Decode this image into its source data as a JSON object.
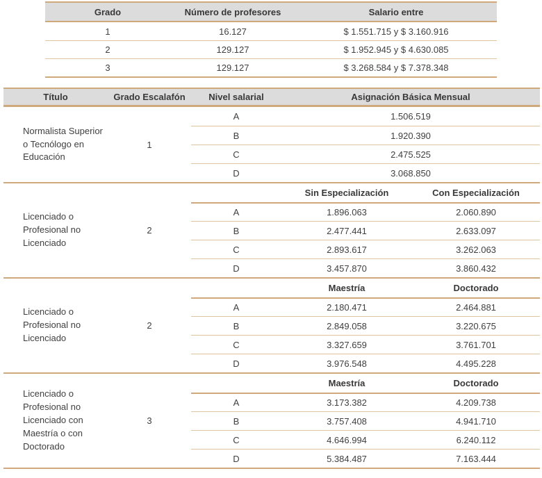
{
  "colors": {
    "rule_strong": "#cfa87c",
    "rule_thin": "#e0c5a1",
    "header_background": "#dcdcdc",
    "text": "#3f3f3f"
  },
  "table1": {
    "headers": {
      "grado": "Grado",
      "numero": "Número de profesores",
      "salario": "Salario entre"
    },
    "rows": [
      {
        "grado": "1",
        "numero": "16.127",
        "salario": "$ 1.551.715 y $ 3.160.916"
      },
      {
        "grado": "2",
        "numero": "129.127",
        "salario": "$ 1.952.945 y $ 4.630.085"
      },
      {
        "grado": "3",
        "numero": "129.127",
        "salario": "$ 3.268.584 y $ 7.378.348"
      }
    ]
  },
  "table2": {
    "headers": {
      "titulo": "Título",
      "grado": "Grado Escalafón",
      "nivel": "Nivel salarial",
      "asignacion": "Asignación Básica Mensual"
    },
    "sections": [
      {
        "titulo": "Normalista Superior\no Tecnólogo en\nEducación",
        "grado": "1",
        "rows": [
          {
            "nivel": "A",
            "value": "1.506.519"
          },
          {
            "nivel": "B",
            "value": "1.920.390"
          },
          {
            "nivel": "C",
            "value": "2.475.525"
          },
          {
            "nivel": "D",
            "value": "3.068.850"
          }
        ]
      },
      {
        "titulo": "Licenciado o\nProfesional no\nLicenciado",
        "grado": "2",
        "col1": "Sin Especialización",
        "col2": "Con Especialización",
        "rows": [
          {
            "nivel": "A",
            "v1": "1.896.063",
            "v2": "2.060.890"
          },
          {
            "nivel": "B",
            "v1": "2.477.441",
            "v2": "2.633.097"
          },
          {
            "nivel": "C",
            "v1": "2.893.617",
            "v2": "3.262.063"
          },
          {
            "nivel": "D",
            "v1": "3.457.870",
            "v2": "3.860.432"
          }
        ]
      },
      {
        "titulo": "Licenciado o\nProfesional no\nLicenciado",
        "grado": "2",
        "col1": "Maestría",
        "col2": "Doctorado",
        "rows": [
          {
            "nivel": "A",
            "v1": "2.180.471",
            "v2": "2.464.881"
          },
          {
            "nivel": "B",
            "v1": "2.849.058",
            "v2": "3.220.675"
          },
          {
            "nivel": "C",
            "v1": "3.327.659",
            "v2": "3.761.701"
          },
          {
            "nivel": "D",
            "v1": "3.976.548",
            "v2": "4.495.228"
          }
        ]
      },
      {
        "titulo": "Licenciado o\nProfesional no\nLicenciado con\nMaestría o con\nDoctorado",
        "grado": "3",
        "col1": "Maestría",
        "col2": "Doctorado",
        "rows": [
          {
            "nivel": "A",
            "v1": "3.173.382",
            "v2": "4.209.738"
          },
          {
            "nivel": "B",
            "v1": "3.757.408",
            "v2": "4.941.710"
          },
          {
            "nivel": "C",
            "v1": "4.646.994",
            "v2": "6.240.112"
          },
          {
            "nivel": "D",
            "v1": "5.384.487",
            "v2": "7.163.444"
          }
        ]
      }
    ]
  }
}
